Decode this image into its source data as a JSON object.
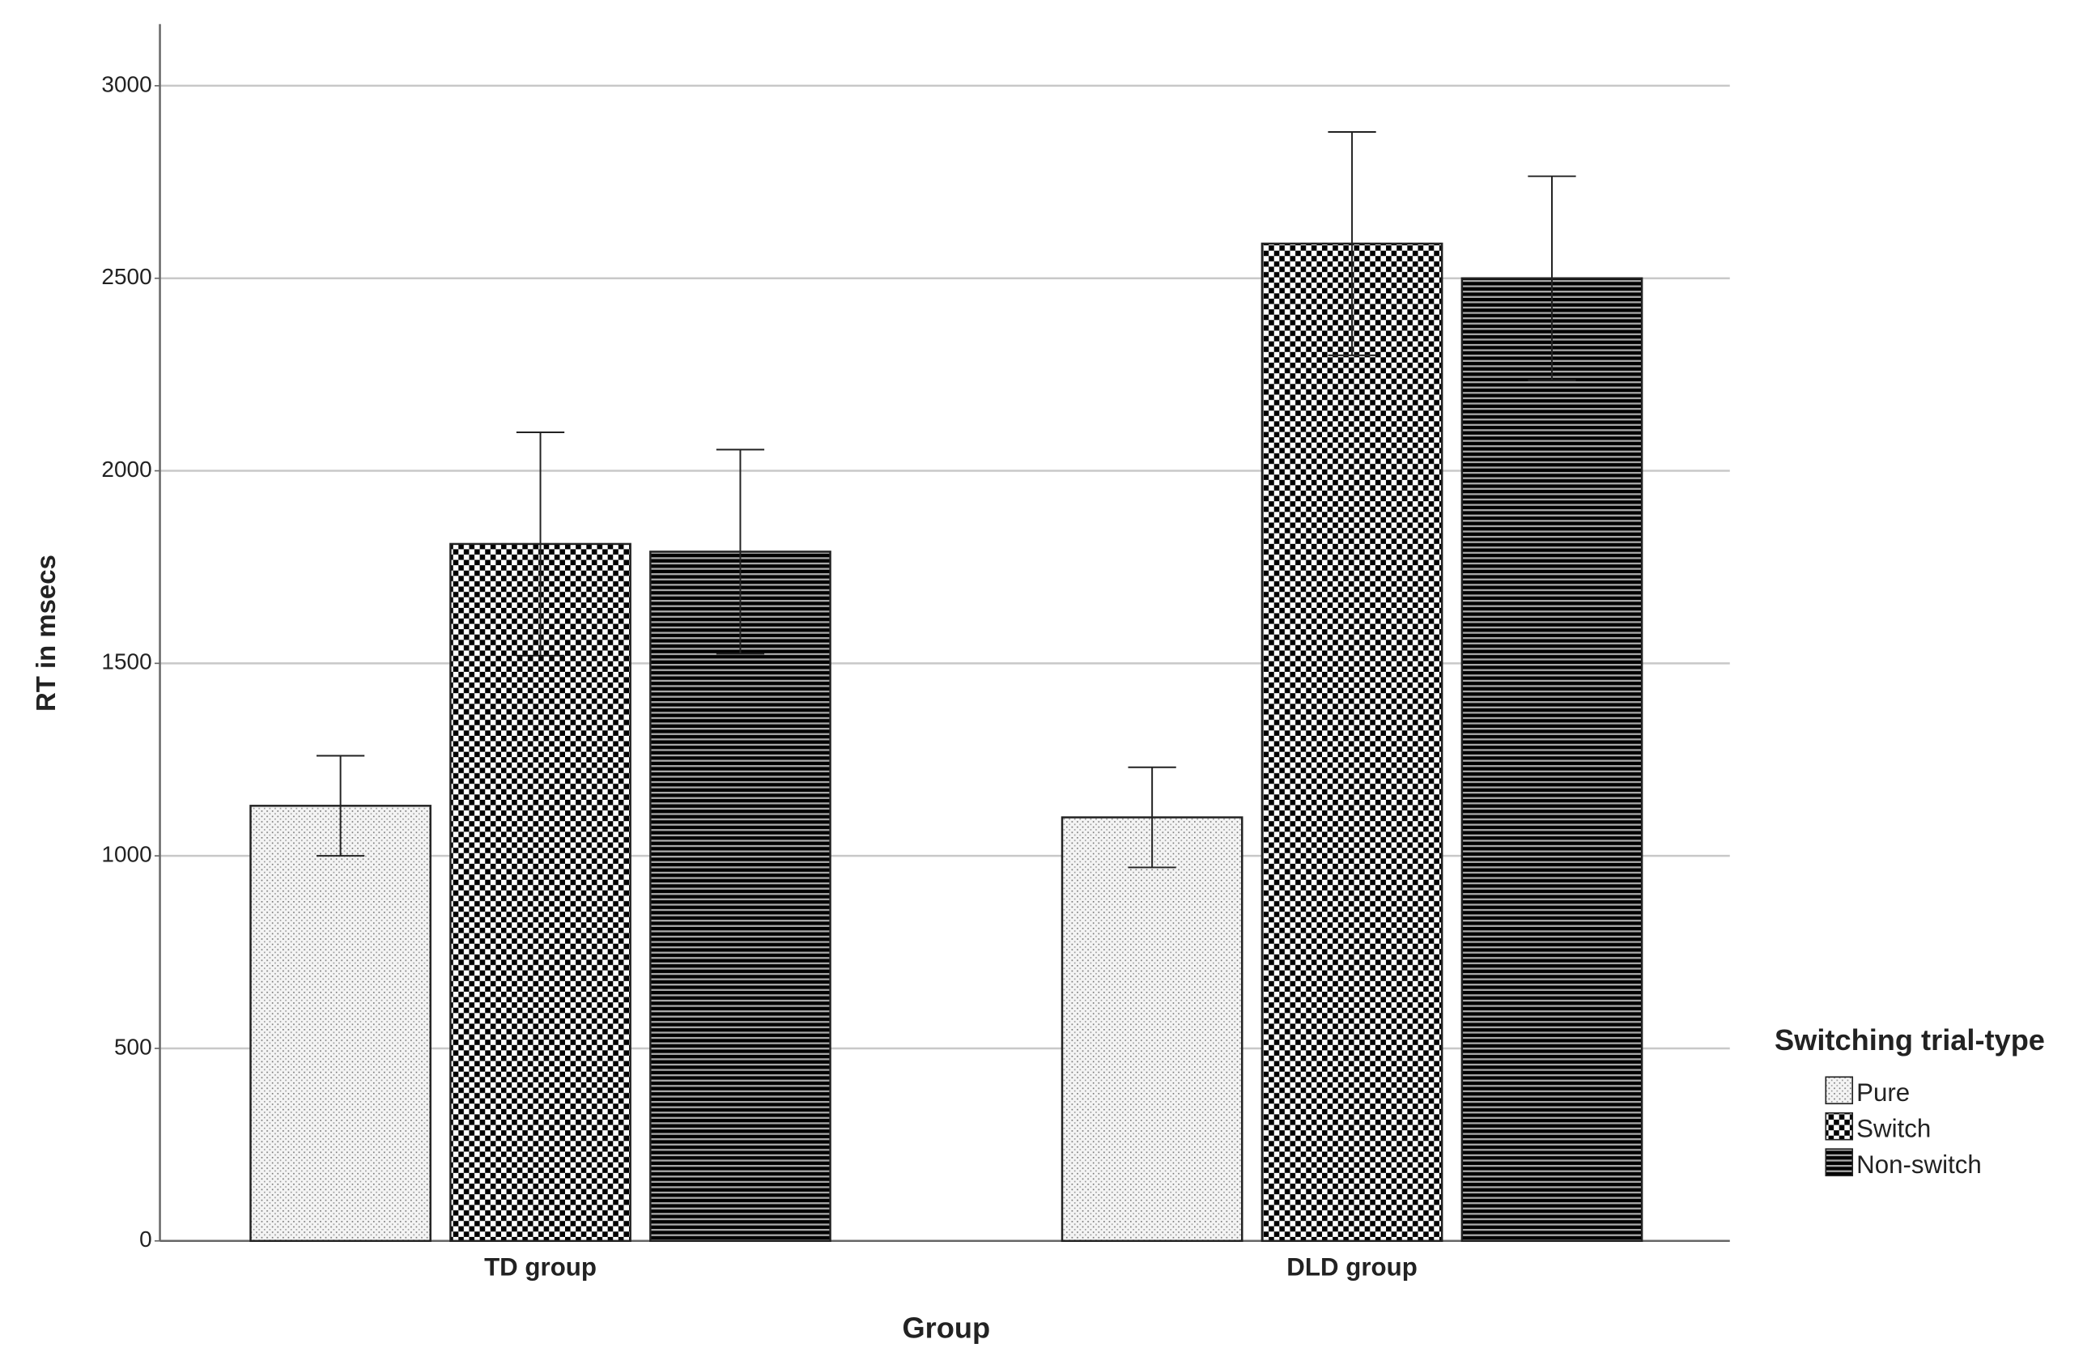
{
  "chart_data": {
    "type": "bar",
    "title": null,
    "x_label": "Group",
    "y_label": "RT in msecs",
    "categories": [
      "TD group",
      "DLD group"
    ],
    "legend_title": "Switching trial-type",
    "series": [
      {
        "name": "Pure",
        "pattern": "dots",
        "values": [
          1130,
          1100
        ],
        "errors": [
          130,
          130
        ]
      },
      {
        "name": "Switch",
        "pattern": "checker",
        "values": [
          1810,
          2590
        ],
        "errors": [
          290,
          290
        ]
      },
      {
        "name": "Non-switch",
        "pattern": "stripes",
        "values": [
          1790,
          2500
        ],
        "errors": [
          265,
          265
        ]
      }
    ],
    "ylim": [
      0,
      3160
    ],
    "yticks": [
      0,
      500,
      1000,
      1500,
      2000,
      2500,
      3000
    ],
    "grid": true,
    "legend": "right"
  }
}
